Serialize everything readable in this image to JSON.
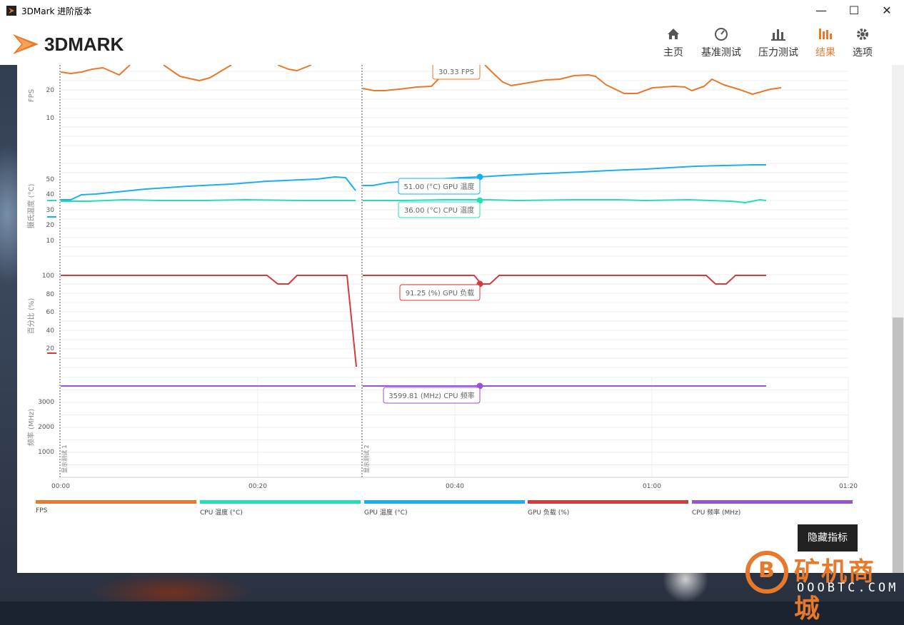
{
  "window": {
    "title": "3DMark 进阶版本",
    "controls": {
      "minimize": "—",
      "maximize": "☐",
      "close": "✕"
    }
  },
  "header": {
    "logo_text": "3DMARK",
    "nav": [
      {
        "label": "主页",
        "icon": "home-icon",
        "active": false
      },
      {
        "label": "基准测试",
        "icon": "gauge-icon",
        "active": false
      },
      {
        "label": "压力测试",
        "icon": "bars-icon",
        "active": false
      },
      {
        "label": "结果",
        "icon": "results-bars-icon",
        "active": true
      },
      {
        "label": "选项",
        "icon": "gear-icon",
        "active": false
      }
    ],
    "accent": "#e8792b"
  },
  "charts": {
    "fps": {
      "ylabel": "FPS",
      "ticks": [
        "20",
        "10"
      ],
      "callout": "30.33 FPS",
      "color": "#e8792b"
    },
    "temp": {
      "ylabel": "摄氏温度 (°C)",
      "ticks": [
        "50",
        "40",
        "30",
        "20",
        "10"
      ],
      "callout_gpu": "51.00 (°C) GPU 温度",
      "callout_cpu": "36.00 (°C) CPU 温度",
      "gpu_color": "#1ab0f0",
      "cpu_color": "#22e0b4"
    },
    "percent": {
      "ylabel": "百分比 (%)",
      "ticks": [
        "100",
        "80",
        "60",
        "40",
        "20"
      ],
      "callout": "91.25 (%) GPU 负载",
      "color": "#d63a3a"
    },
    "freq": {
      "ylabel": "频率 (MHz)",
      "ticks": [
        "3000",
        "2000",
        "1000"
      ],
      "callout": "3599.81 (MHz) CPU 频率",
      "color": "#9a52d6"
    },
    "markers": [
      "显示测试 1",
      "显示测试 2"
    ],
    "x_ticks": [
      "00:00",
      "00:20",
      "00:40",
      "01:00",
      "01:20"
    ]
  },
  "legend": [
    {
      "label": "FPS",
      "color": "#e8792b"
    },
    {
      "label": "CPU 温度 (°C)",
      "color": "#22e0b4"
    },
    {
      "label": "GPU 温度 (°C)",
      "color": "#1ab0f0"
    },
    {
      "label": "GPU 负载 (%)",
      "color": "#d63a3a"
    },
    {
      "label": "CPU 频率 (MHz)",
      "color": "#9a52d6"
    }
  ],
  "hide_button": "隐藏指标",
  "watermark": {
    "text": "矿机商城",
    "sub": "OOOBTC.COM"
  }
}
